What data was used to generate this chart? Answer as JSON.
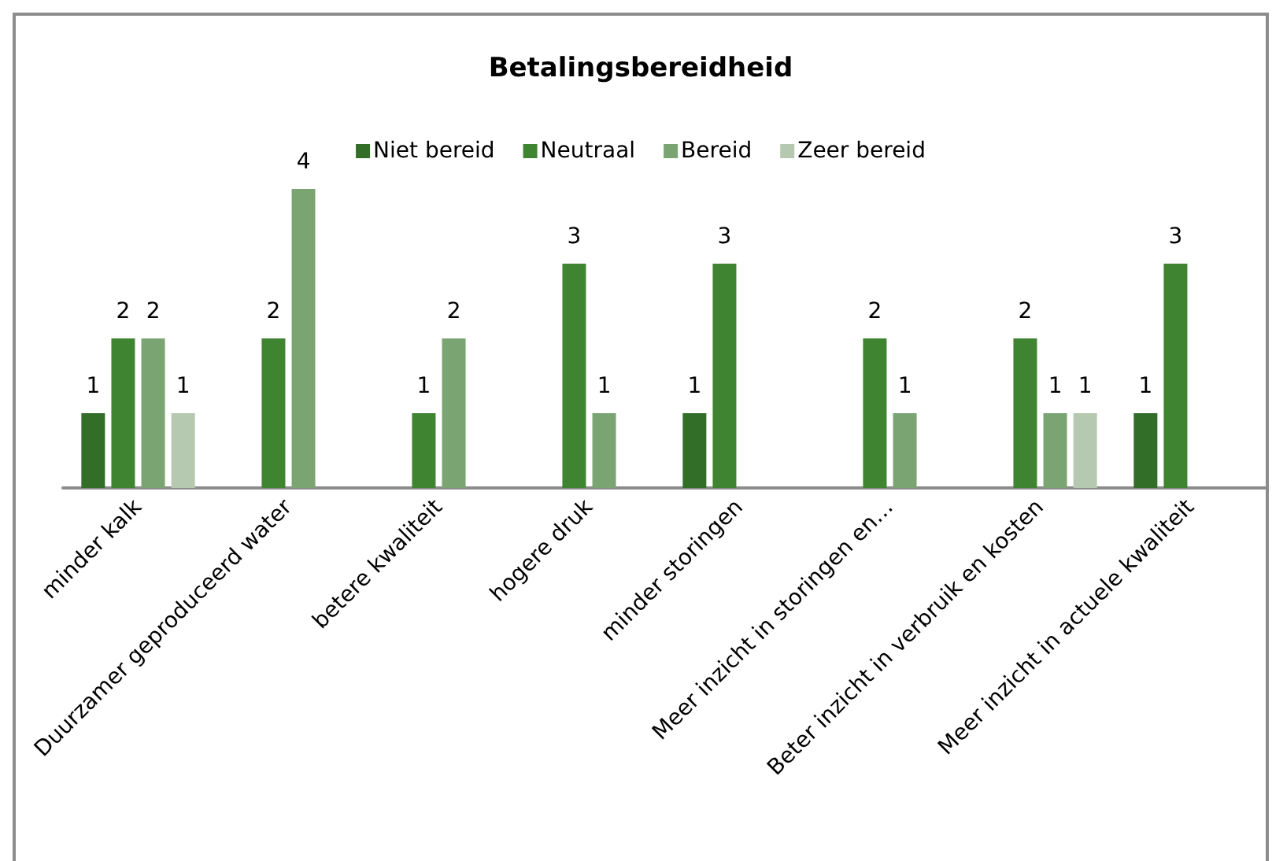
{
  "chart_data": {
    "type": "bar",
    "title": "Betalingsbereidheid",
    "categories": [
      "minder kalk",
      "Duurzamer geproduceerd water",
      "betere kwaliteit",
      "hogere druk",
      "minder storingen",
      "Meer inzicht in storingen en…",
      "Beter inzicht in verbruik en kosten",
      "Meer inzicht in actuele kwaliteit"
    ],
    "series": [
      {
        "name": "Niet bereid",
        "color": "#336e29",
        "values": [
          1,
          null,
          null,
          null,
          1,
          null,
          null,
          1
        ]
      },
      {
        "name": "Neutraal",
        "color": "#3e8431",
        "values": [
          2,
          2,
          1,
          3,
          3,
          2,
          2,
          3
        ]
      },
      {
        "name": "Bereid",
        "color": "#7aa572",
        "values": [
          2,
          4,
          2,
          1,
          null,
          1,
          1,
          null
        ]
      },
      {
        "name": "Zeer bereid",
        "color": "#b5c9b0",
        "values": [
          1,
          null,
          null,
          null,
          null,
          null,
          1,
          null
        ]
      }
    ],
    "data_labels": true,
    "legend": "top",
    "grid": false,
    "tick_labels": "x"
  }
}
